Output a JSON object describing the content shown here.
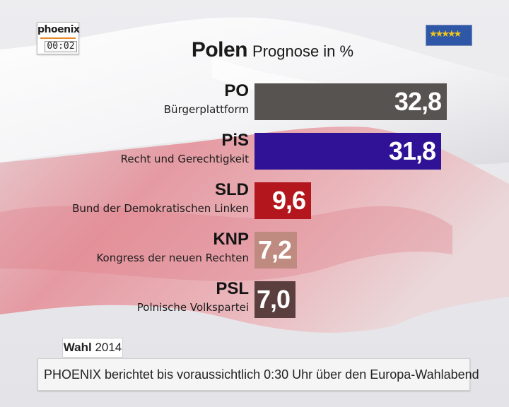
{
  "logo": {
    "name": "phoenix",
    "clock": "00:02"
  },
  "eu_flag_icon": "eu-flag-icon",
  "chart_data": {
    "type": "bar",
    "orientation": "horizontal",
    "title": "Polen",
    "subtitle": "Prognose in %",
    "categories": [
      "PO",
      "PiS",
      "SLD",
      "KNP",
      "PSL"
    ],
    "category_names": [
      "Bürgerplattform",
      "Recht und Gerechtigkeit",
      "Bund der Demokratischen Linken",
      "Kongress der neuen Rechten",
      "Polnische Volkspartei"
    ],
    "values": [
      32.8,
      31.8,
      9.6,
      7.2,
      7.0
    ],
    "value_labels": [
      "32,8",
      "31,8",
      "9,6",
      "7,2",
      "7,0"
    ],
    "colors": [
      "#575350",
      "#2f1295",
      "#b3171d",
      "#bf8a7f",
      "#5a3f3e"
    ],
    "xlim": [
      0,
      34
    ],
    "grid": false,
    "legend": "none"
  },
  "election_label": {
    "bold": "Wahl",
    "normal": "2014"
  },
  "ticker": {
    "text": "PHOENIX berichtet bis voraussichtlich 0:30 Uhr über den Europa-Wahlabend"
  }
}
